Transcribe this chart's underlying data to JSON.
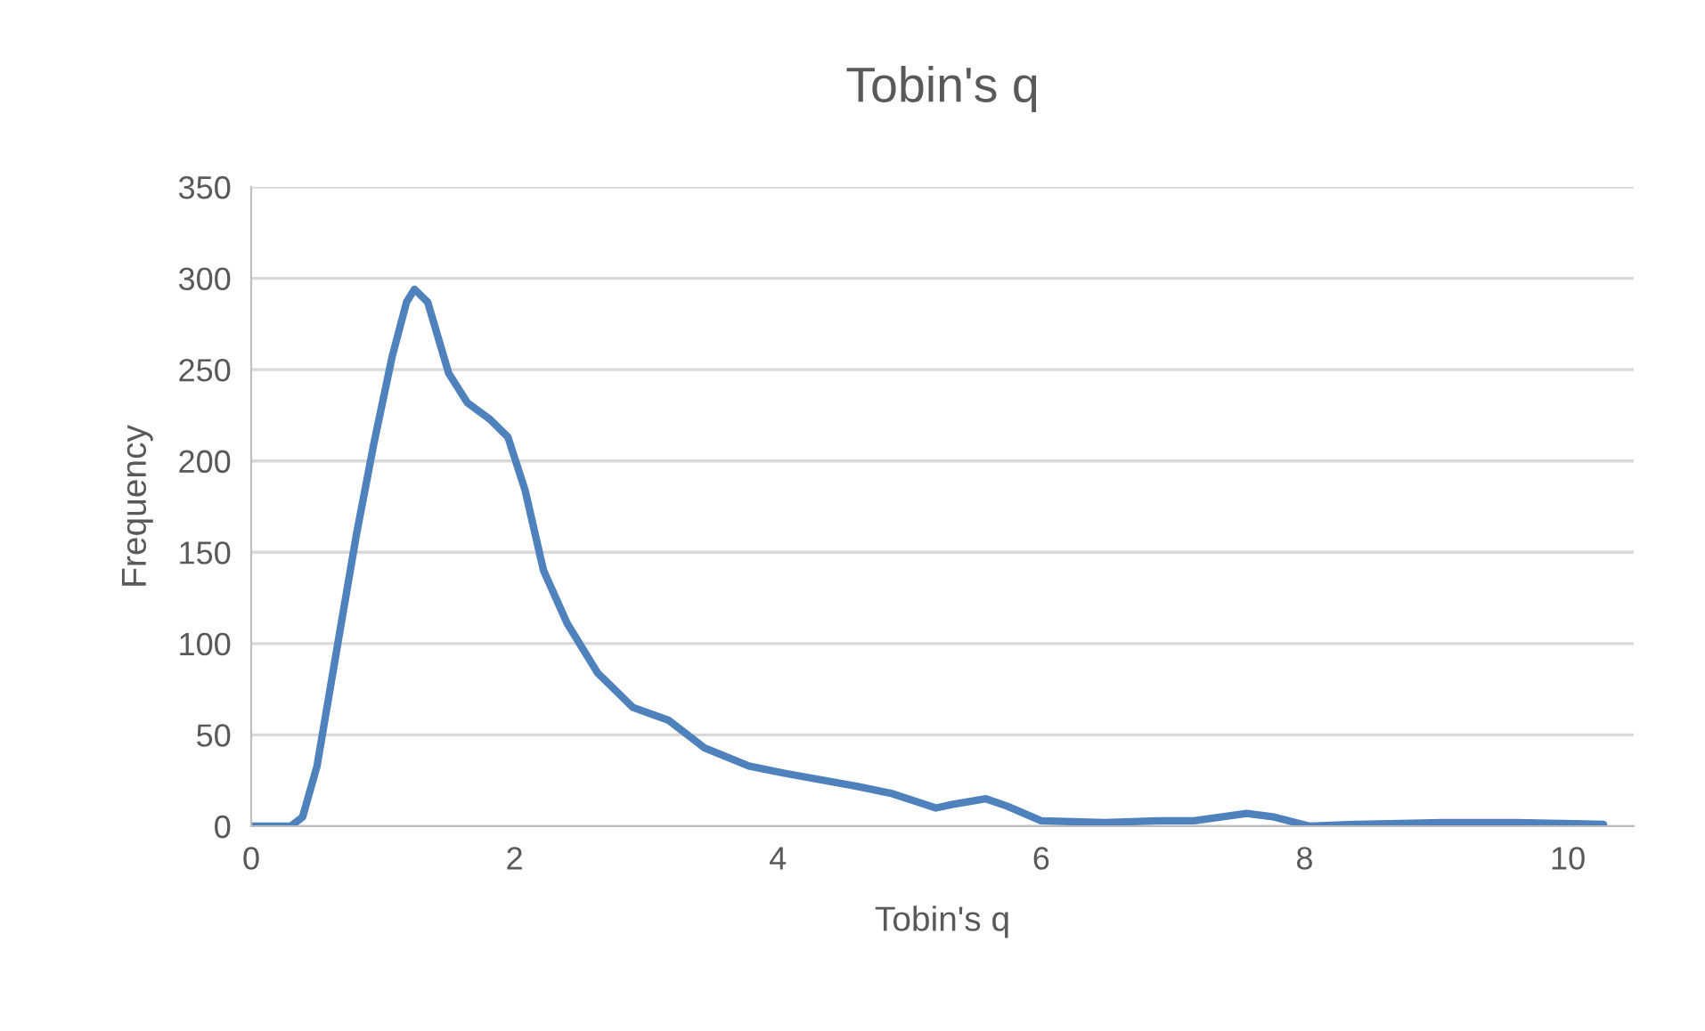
{
  "chart_data": {
    "type": "line",
    "title": "Tobin's q",
    "xlabel": "Tobin's q",
    "ylabel": "Frequency",
    "x": [
      0,
      0.12,
      0.3,
      0.39,
      0.5,
      0.66,
      0.8,
      0.93,
      1.07,
      1.18,
      1.24,
      1.34,
      1.5,
      1.64,
      1.81,
      1.95,
      2.08,
      2.22,
      2.4,
      2.63,
      2.9,
      3.17,
      3.44,
      3.78,
      4.05,
      4.59,
      4.86,
      5.2,
      5.33,
      5.58,
      5.74,
      6.0,
      6.48,
      6.89,
      7.16,
      7.56,
      7.77,
      8.04,
      8.38,
      9.05,
      9.6,
      10.27
    ],
    "series": [
      {
        "color": "#4f81bd",
        "values": [
          0,
          0,
          0,
          5,
          33,
          101,
          160,
          209,
          257,
          287,
          294,
          287,
          248,
          232,
          223,
          213,
          184,
          140,
          111,
          84,
          65,
          58,
          43,
          33,
          29,
          22,
          18,
          10,
          12,
          15,
          11,
          3,
          2,
          3,
          3,
          7,
          5,
          0,
          1,
          2,
          2,
          1
        ]
      }
    ],
    "xlim": [
      0,
      10.5
    ],
    "xticks": [
      0,
      2,
      4,
      6,
      8,
      10
    ],
    "ylim": [
      0,
      350
    ],
    "yticks": [
      0,
      50,
      100,
      150,
      200,
      250,
      300,
      350
    ],
    "grid": "y",
    "marker": "none",
    "line_style": "solid",
    "legend": false
  }
}
